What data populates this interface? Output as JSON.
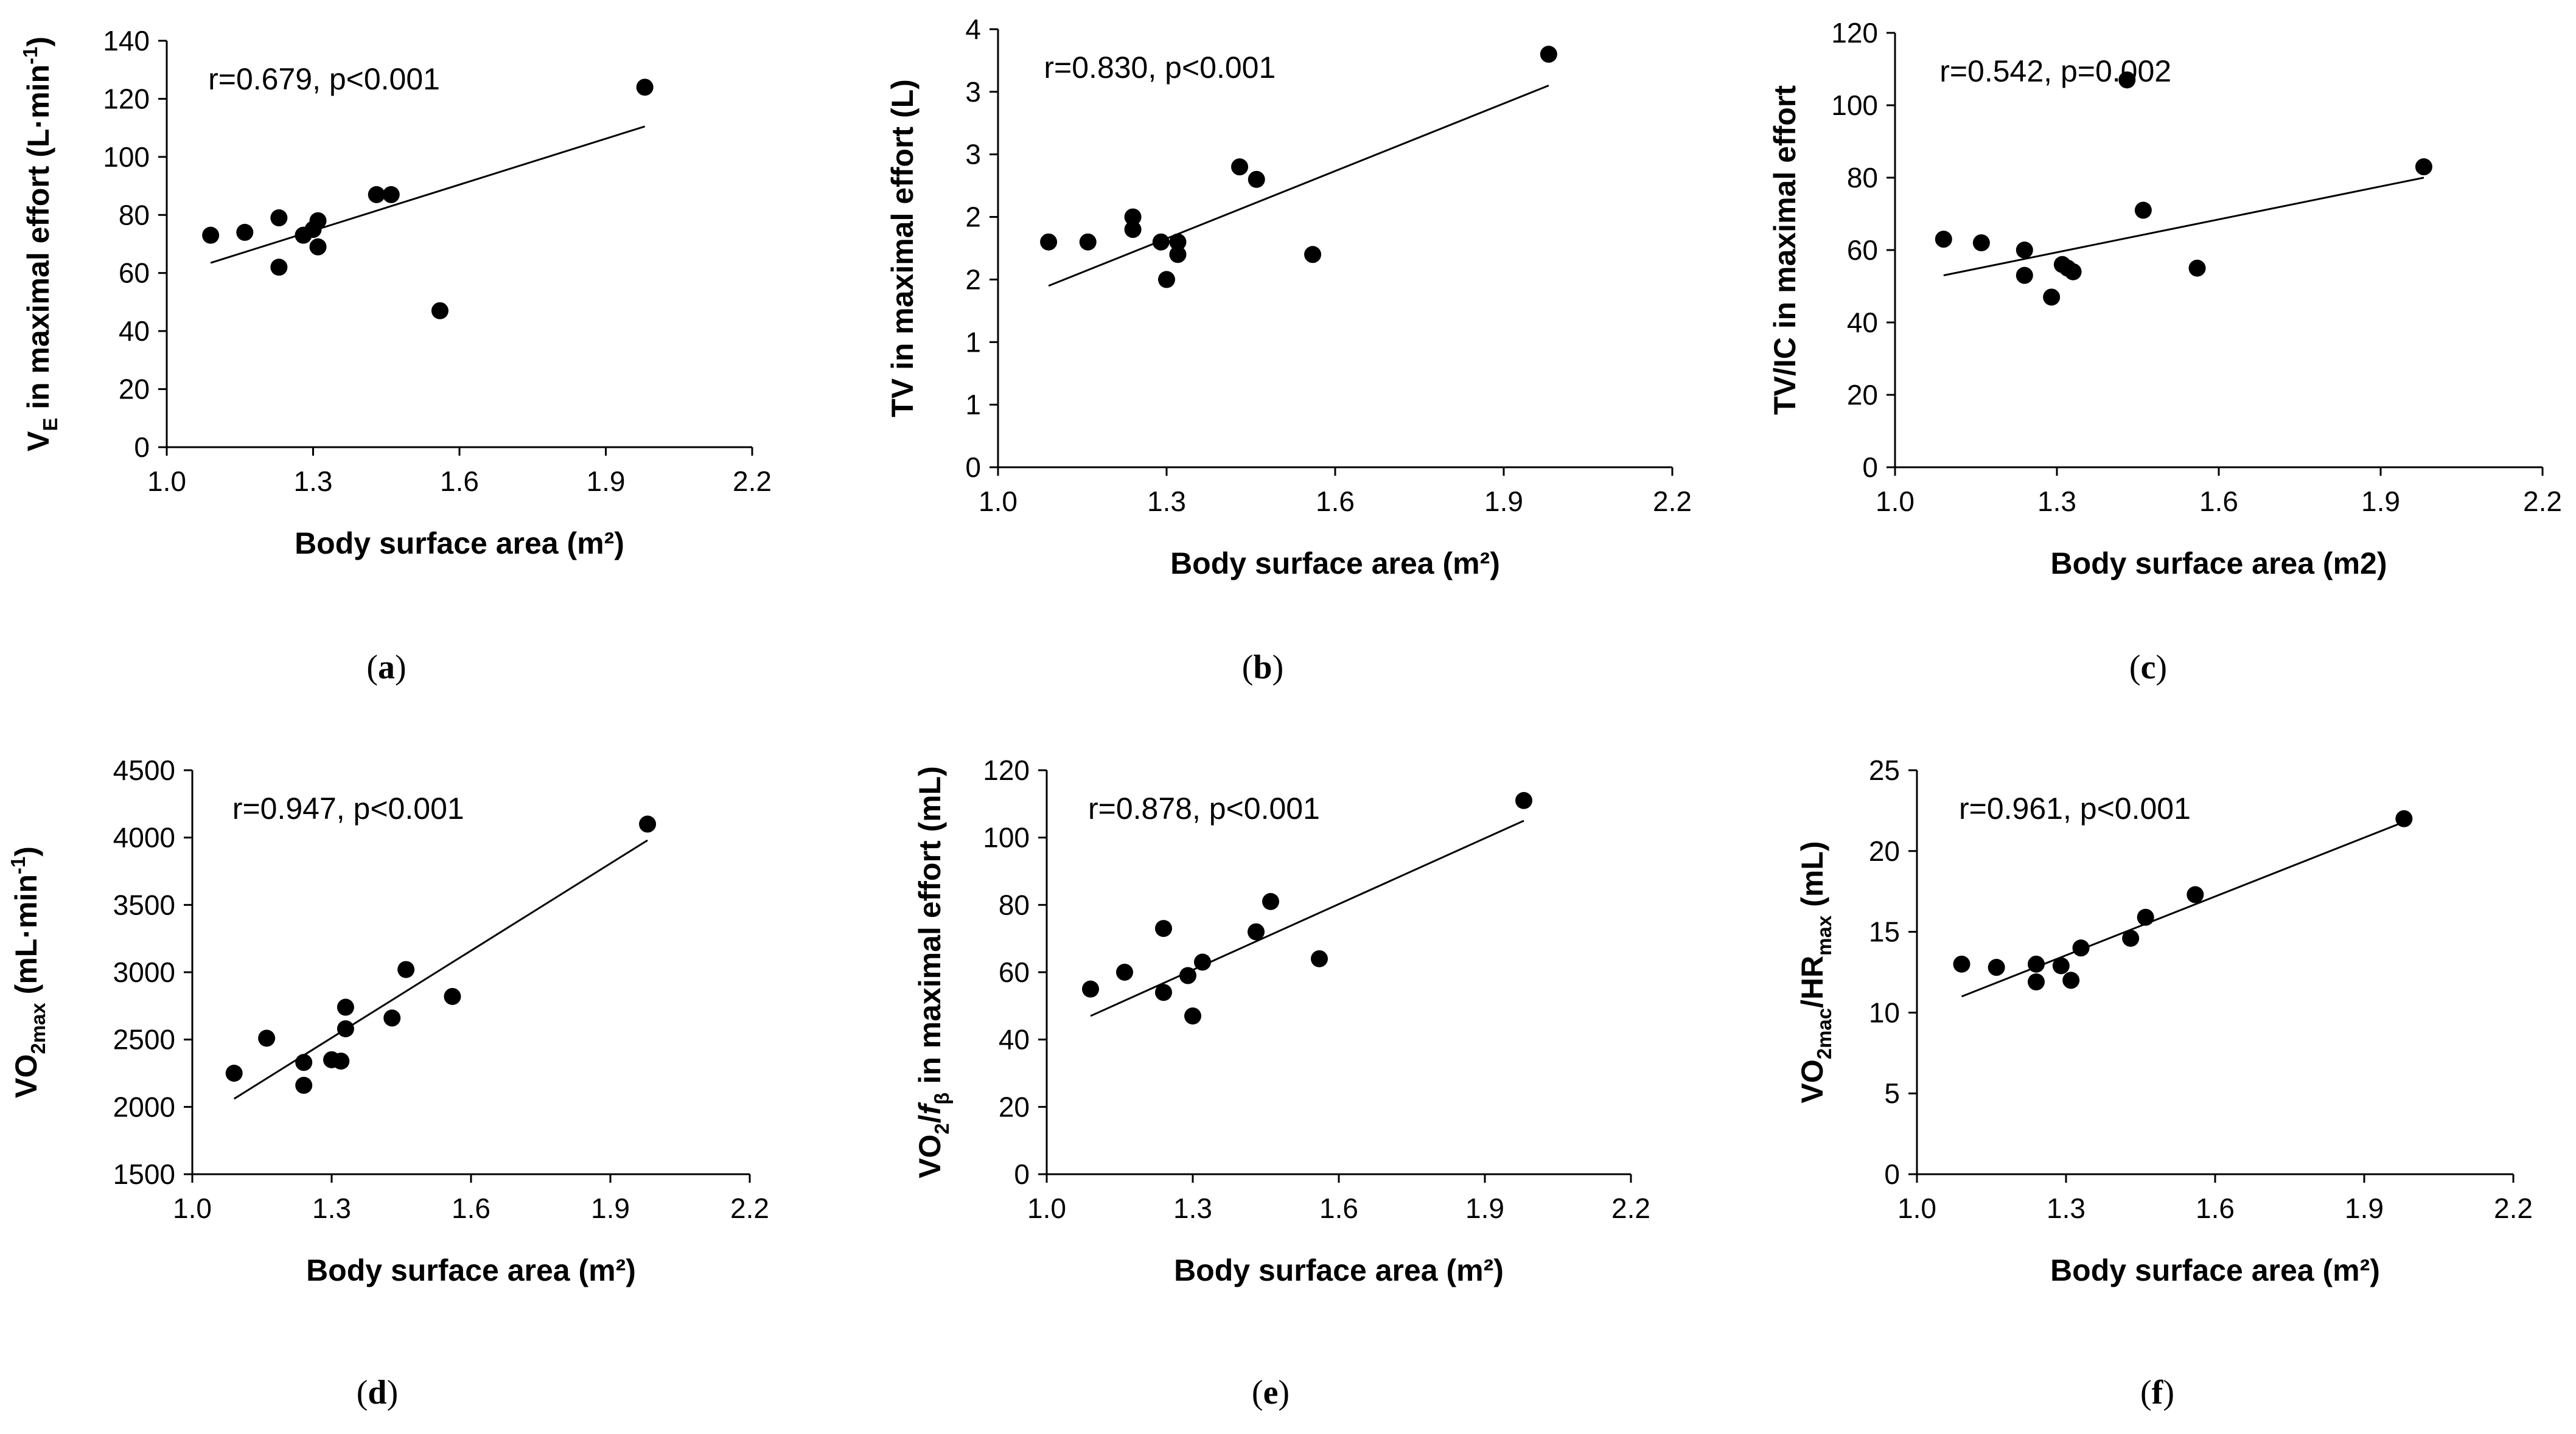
{
  "chart_data": [
    {
      "type": "scatter",
      "panel": "(a)",
      "caption_letter": "a",
      "annotation": "r=0.679, p<0.001",
      "xlabel": "Body surface area (m²)",
      "ylabel": "V<sub>E</sub> in maximal effort (L·min<sup>-1</sup>)",
      "xlim": [
        1.0,
        2.2
      ],
      "ylim": [
        0,
        140
      ],
      "x_ticks": [
        "1.0",
        "1.3",
        "1.6",
        "1.9",
        "2.2"
      ],
      "y_ticks": [
        "0",
        "20",
        "40",
        "60",
        "80",
        "100",
        "120",
        "140"
      ],
      "points": [
        {
          "x": 1.09,
          "y": 73
        },
        {
          "x": 1.16,
          "y": 74
        },
        {
          "x": 1.23,
          "y": 79
        },
        {
          "x": 1.23,
          "y": 62
        },
        {
          "x": 1.28,
          "y": 73
        },
        {
          "x": 1.3,
          "y": 75
        },
        {
          "x": 1.31,
          "y": 78
        },
        {
          "x": 1.31,
          "y": 69
        },
        {
          "x": 1.43,
          "y": 87
        },
        {
          "x": 1.46,
          "y": 87
        },
        {
          "x": 1.56,
          "y": 47
        },
        {
          "x": 1.98,
          "y": 124
        }
      ],
      "trendline": [
        {
          "x": 1.09,
          "y": 63.5
        },
        {
          "x": 1.98,
          "y": 110.5
        }
      ]
    },
    {
      "type": "scatter",
      "panel": "(b)",
      "caption_letter": "b",
      "annotation": "r=0.830, p<0.001",
      "xlabel": "Body surface area (m²)",
      "ylabel": "TV in maximal effort (L)",
      "xlim": [
        1.0,
        2.2
      ],
      "ylim": [
        0,
        3.5
      ],
      "x_ticks": [
        "1.0",
        "1.3",
        "1.6",
        "1.9",
        "2.2"
      ],
      "y_ticks": [
        "0",
        "1",
        "1",
        "2",
        "2",
        "3",
        "3",
        "4"
      ],
      "points": [
        {
          "x": 1.09,
          "y": 1.8
        },
        {
          "x": 1.16,
          "y": 1.8
        },
        {
          "x": 1.24,
          "y": 2.0
        },
        {
          "x": 1.24,
          "y": 1.9
        },
        {
          "x": 1.29,
          "y": 1.8
        },
        {
          "x": 1.3,
          "y": 1.5
        },
        {
          "x": 1.32,
          "y": 1.8
        },
        {
          "x": 1.32,
          "y": 1.7
        },
        {
          "x": 1.43,
          "y": 2.4
        },
        {
          "x": 1.46,
          "y": 2.3
        },
        {
          "x": 1.56,
          "y": 1.7
        },
        {
          "x": 1.98,
          "y": 3.3
        }
      ],
      "trendline": [
        {
          "x": 1.09,
          "y": 1.45
        },
        {
          "x": 1.98,
          "y": 3.05
        }
      ]
    },
    {
      "type": "scatter",
      "panel": "(c)",
      "caption_letter": "c",
      "annotation": "r=0.542, p=0.002",
      "xlabel": "Body surface area (m2)",
      "ylabel": "TV/IC in maximal effort",
      "xlim": [
        1.0,
        2.2
      ],
      "ylim": [
        0,
        120
      ],
      "x_ticks": [
        "1.0",
        "1.3",
        "1.6",
        "1.9",
        "2.2"
      ],
      "y_ticks": [
        "0",
        "20",
        "40",
        "60",
        "80",
        "100",
        "120"
      ],
      "points": [
        {
          "x": 1.09,
          "y": 63
        },
        {
          "x": 1.16,
          "y": 62
        },
        {
          "x": 1.24,
          "y": 60
        },
        {
          "x": 1.24,
          "y": 53
        },
        {
          "x": 1.29,
          "y": 47
        },
        {
          "x": 1.31,
          "y": 56
        },
        {
          "x": 1.32,
          "y": 55
        },
        {
          "x": 1.33,
          "y": 54
        },
        {
          "x": 1.43,
          "y": 107
        },
        {
          "x": 1.46,
          "y": 71
        },
        {
          "x": 1.56,
          "y": 55
        },
        {
          "x": 1.98,
          "y": 83
        }
      ],
      "trendline": [
        {
          "x": 1.09,
          "y": 53
        },
        {
          "x": 1.98,
          "y": 80
        }
      ]
    },
    {
      "type": "scatter",
      "panel": "(d)",
      "caption_letter": "d",
      "annotation": "r=0.947, p<0.001",
      "xlabel": "Body surface area (m²)",
      "ylabel": "VO<sub>2max</sub>  (mL·min<sup>-1</sup>)",
      "xlim": [
        1.0,
        2.2
      ],
      "ylim": [
        1500,
        4500
      ],
      "x_ticks": [
        "1.0",
        "1.3",
        "1.6",
        "1.9",
        "2.2"
      ],
      "y_ticks": [
        "1500",
        "2000",
        "2500",
        "3000",
        "3500",
        "4000",
        "4500"
      ],
      "points": [
        {
          "x": 1.09,
          "y": 2250
        },
        {
          "x": 1.16,
          "y": 2510
        },
        {
          "x": 1.24,
          "y": 2330
        },
        {
          "x": 1.24,
          "y": 2160
        },
        {
          "x": 1.3,
          "y": 2350
        },
        {
          "x": 1.32,
          "y": 2340
        },
        {
          "x": 1.33,
          "y": 2580
        },
        {
          "x": 1.33,
          "y": 2740
        },
        {
          "x": 1.43,
          "y": 2660
        },
        {
          "x": 1.46,
          "y": 3020
        },
        {
          "x": 1.56,
          "y": 2820
        },
        {
          "x": 1.98,
          "y": 4100
        }
      ],
      "trendline": [
        {
          "x": 1.09,
          "y": 2060
        },
        {
          "x": 1.98,
          "y": 3980
        }
      ]
    },
    {
      "type": "scatter",
      "panel": "(e)",
      "caption_letter": "e",
      "annotation": "r=0.878, p<0.001",
      "xlabel": "Body surface area (m²)",
      "ylabel": "VO<sub>2</sub>/<i>f</i><sub>β</sub> in maximal effort (mL)",
      "xlim": [
        1.0,
        2.2
      ],
      "ylim": [
        0,
        120
      ],
      "x_ticks": [
        "1.0",
        "1.3",
        "1.6",
        "1.9",
        "2.2"
      ],
      "y_ticks": [
        "0",
        "20",
        "40",
        "60",
        "80",
        "100",
        "120"
      ],
      "points": [
        {
          "x": 1.09,
          "y": 55
        },
        {
          "x": 1.16,
          "y": 60
        },
        {
          "x": 1.24,
          "y": 73
        },
        {
          "x": 1.24,
          "y": 54
        },
        {
          "x": 1.29,
          "y": 59
        },
        {
          "x": 1.3,
          "y": 47
        },
        {
          "x": 1.32,
          "y": 63
        },
        {
          "x": 1.43,
          "y": 72
        },
        {
          "x": 1.46,
          "y": 81
        },
        {
          "x": 1.56,
          "y": 64
        },
        {
          "x": 1.98,
          "y": 111
        }
      ],
      "trendline": [
        {
          "x": 1.09,
          "y": 47
        },
        {
          "x": 1.98,
          "y": 105
        }
      ]
    },
    {
      "type": "scatter",
      "panel": "(f)",
      "caption_letter": "f",
      "annotation": "r=0.961, p<0.001",
      "xlabel": "Body surface area (m²)",
      "ylabel": "VO<sub>2mac</sub>/HR<sub>max</sub> (mL)",
      "xlim": [
        1.0,
        2.2
      ],
      "ylim": [
        0,
        25
      ],
      "x_ticks": [
        "1.0",
        "1.3",
        "1.6",
        "1.9",
        "2.2"
      ],
      "y_ticks": [
        "0",
        "5",
        "10",
        "15",
        "20",
        "25"
      ],
      "points": [
        {
          "x": 1.09,
          "y": 13
        },
        {
          "x": 1.16,
          "y": 12.8
        },
        {
          "x": 1.24,
          "y": 13
        },
        {
          "x": 1.24,
          "y": 11.9
        },
        {
          "x": 1.29,
          "y": 12.9
        },
        {
          "x": 1.31,
          "y": 12
        },
        {
          "x": 1.33,
          "y": 14
        },
        {
          "x": 1.43,
          "y": 14.6
        },
        {
          "x": 1.46,
          "y": 15.9
        },
        {
          "x": 1.56,
          "y": 17.3
        },
        {
          "x": 1.98,
          "y": 22
        }
      ],
      "trendline": [
        {
          "x": 1.09,
          "y": 11
        },
        {
          "x": 1.98,
          "y": 21.8
        }
      ]
    }
  ]
}
